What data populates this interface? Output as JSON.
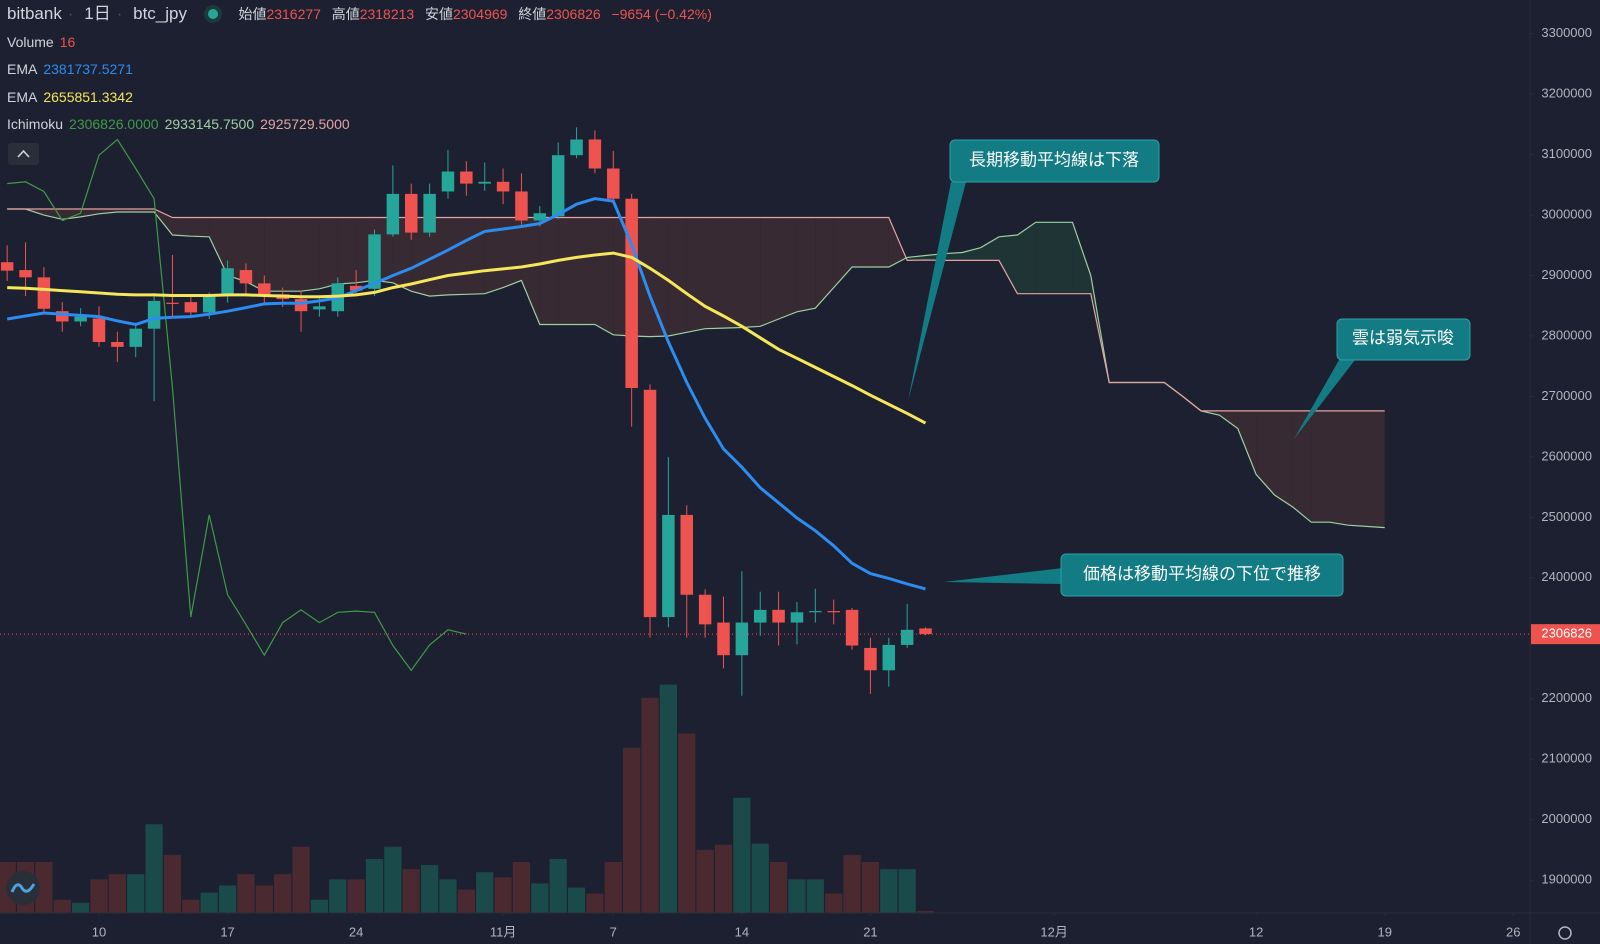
{
  "header": {
    "exchange": "bitbank",
    "interval": "1日",
    "symbol": "btc_jpy",
    "ohlc_labels": [
      "始値",
      "高値",
      "安値",
      "終値"
    ],
    "change": "−9654 (−0.42%)"
  },
  "chart_data": {
    "type": "candlestick",
    "up_color": "#26a69a",
    "down_color": "#ef5350",
    "x": [
      0,
      1,
      2,
      3,
      4,
      5,
      6,
      7,
      8,
      9,
      10,
      11,
      12,
      13,
      14,
      15,
      16,
      17,
      18,
      19,
      20,
      21,
      22,
      23,
      24,
      25,
      26,
      27,
      28,
      29,
      30,
      31,
      32,
      33,
      34,
      35,
      36,
      37,
      38,
      39,
      40,
      41,
      42,
      43,
      44,
      45,
      46,
      47,
      48,
      49,
      50
    ],
    "open": [
      2922000,
      2909000,
      2897000,
      2841000,
      2824000,
      2829000,
      2790000,
      2782000,
      2812000,
      2855000,
      2856000,
      2839000,
      2866000,
      2909000,
      2887000,
      2869000,
      2861000,
      2844000,
      2841000,
      2883000,
      2878000,
      2968000,
      3035000,
      2971000,
      3039000,
      3072000,
      3052000,
      3055000,
      3039000,
      2991000,
      2998000,
      3099000,
      3125000,
      3077000,
      3027000,
      2711000,
      2335000,
      2504000,
      2372000,
      2326000,
      2272000,
      2326000,
      2347000,
      2326000,
      2343000,
      2345000,
      2347000,
      2284000,
      2247000,
      2289000,
      2316277
    ],
    "high": [
      2950000,
      2955000,
      2914000,
      2856000,
      2846000,
      2849000,
      2807000,
      2822000,
      2871000,
      2934000,
      2866000,
      2872000,
      2925000,
      2920000,
      2900000,
      2880000,
      2875000,
      2862000,
      2897000,
      2909000,
      2976000,
      3082000,
      3052000,
      3052000,
      3108000,
      3089000,
      3087000,
      3077000,
      3069000,
      3015000,
      3120000,
      3145000,
      3140000,
      3106000,
      3035000,
      2720000,
      2600000,
      2520000,
      2381000,
      2369000,
      2411000,
      2377000,
      2377000,
      2360000,
      2382000,
      2364000,
      2350000,
      2301000,
      2301000,
      2357000,
      2318213
    ],
    "low": [
      2891000,
      2866000,
      2836000,
      2807000,
      2816000,
      2782000,
      2757000,
      2765000,
      2692000,
      2832000,
      2830000,
      2828000,
      2855000,
      2866000,
      2853000,
      2848000,
      2807000,
      2832000,
      2832000,
      2866000,
      2866000,
      2964000,
      2959000,
      2964000,
      3027000,
      3032000,
      3040000,
      3018000,
      2984000,
      2981000,
      2993000,
      3094000,
      3069000,
      3018000,
      2650000,
      2301000,
      2318000,
      2301000,
      2301000,
      2250000,
      2205000,
      2304000,
      2288000,
      2290000,
      2326000,
      2323000,
      2281000,
      2208000,
      2220000,
      2284000,
      2304969
    ],
    "close": [
      2908000,
      2897000,
      2845000,
      2824000,
      2832000,
      2790000,
      2782000,
      2812000,
      2858000,
      2853000,
      2839000,
      2865000,
      2912000,
      2887000,
      2866000,
      2861000,
      2841000,
      2849000,
      2887000,
      2875000,
      2968000,
      3035000,
      2971000,
      3035000,
      3072000,
      3052000,
      3055000,
      3039000,
      2991000,
      3003000,
      3099000,
      3125000,
      3077000,
      3027000,
      2714000,
      2335000,
      2504000,
      2372000,
      2323000,
      2272000,
      2326000,
      2347000,
      2326000,
      2343000,
      2345000,
      2343000,
      2288000,
      2247000,
      2289000,
      2314000,
      2306826
    ],
    "volume": {
      "name": "Volume",
      "ylim": [
        0,
        7160
      ],
      "up_color": "#1a4a4a",
      "down_color": "#4a2a30",
      "values": [
        400,
        400,
        400,
        104,
        80,
        264,
        304,
        304,
        696,
        456,
        104,
        160,
        216,
        304,
        216,
        304,
        520,
        104,
        264,
        264,
        424,
        520,
        344,
        376,
        264,
        184,
        320,
        280,
        400,
        232,
        424,
        200,
        152,
        400,
        1296,
        1688,
        1792,
        1408,
        496,
        536,
        904,
        544,
        400,
        264,
        264,
        152,
        456,
        400,
        344,
        344,
        16
      ]
    },
    "ema": [
      {
        "name": "EMA",
        "color": "#2d8cf0",
        "values": [
          2828000,
          2833000,
          2838000,
          2836000,
          2834000,
          2832000,
          2825000,
          2819000,
          2829000,
          2831000,
          2832000,
          2836000,
          2841000,
          2847000,
          2853000,
          2854000,
          2854000,
          2858000,
          2863000,
          2875000,
          2887000,
          2900000,
          2912000,
          2927000,
          2942000,
          2958000,
          2973000,
          2977000,
          2981000,
          2986000,
          3001000,
          3018000,
          3027000,
          3023000,
          2951000,
          2866000,
          2790000,
          2723000,
          2664000,
          2613000,
          2583000,
          2549000,
          2524000,
          2499000,
          2478000,
          2453000,
          2424000,
          2407000,
          2399000,
          2390000,
          2381737.5271
        ]
      },
      {
        "name": "EMA",
        "color": "#f5e65a",
        "values": [
          2880000,
          2879000,
          2877000,
          2875000,
          2873000,
          2871000,
          2869000,
          2868000,
          2868000,
          2867000,
          2867000,
          2867000,
          2868000,
          2868000,
          2867000,
          2866000,
          2865000,
          2865000,
          2866000,
          2868000,
          2872000,
          2880000,
          2886000,
          2893000,
          2900000,
          2904000,
          2908000,
          2911000,
          2914000,
          2919000,
          2925000,
          2930000,
          2934000,
          2937000,
          2930000,
          2912000,
          2892000,
          2870000,
          2849000,
          2833000,
          2816000,
          2797000,
          2778000,
          2763000,
          2748000,
          2733000,
          2718000,
          2702000,
          2687000,
          2672000,
          2655851.3342
        ]
      }
    ],
    "ichimoku": {
      "name": "Ichimoku",
      "value_labels": [
        "2306826.0000",
        "2933145.7500",
        "2925729.5000"
      ],
      "cloud_up_color": "#1e3435",
      "cloud_down_color": "#372a33",
      "lagging": {
        "color": "#3f9a47",
        "x": [
          0,
          1,
          2,
          3,
          4,
          5,
          6,
          7,
          8,
          9,
          10,
          11,
          12,
          13,
          14,
          15,
          16,
          17,
          18,
          19,
          20,
          21,
          22,
          23,
          24,
          25
        ],
        "values": [
          3052000,
          3055000,
          3039000,
          2991000,
          3003000,
          3099000,
          3125000,
          3077000,
          3027000,
          2714000,
          2335000,
          2504000,
          2372000,
          2323000,
          2272000,
          2326000,
          2347000,
          2326000,
          2343000,
          2345000,
          2343000,
          2288000,
          2247000,
          2289000,
          2314000,
          2306826
        ]
      },
      "span_x": [
        0,
        1,
        2,
        3,
        4,
        5,
        6,
        7,
        8,
        9,
        10,
        11,
        12,
        13,
        14,
        15,
        16,
        17,
        18,
        19,
        20,
        21,
        22,
        23,
        24,
        25,
        26,
        27,
        28,
        29,
        30,
        31,
        32,
        33,
        34,
        35,
        36,
        37,
        38,
        39,
        40,
        41,
        42,
        43,
        44,
        45,
        46,
        47,
        48,
        49,
        50,
        51,
        52,
        53,
        54,
        55,
        56,
        57,
        58,
        59,
        60,
        61,
        62,
        63,
        64,
        65,
        66,
        67,
        68,
        69,
        70,
        71,
        72,
        73,
        74,
        75
      ],
      "span_a": {
        "color": "#9fcfa2",
        "values": [
          3010000,
          3010000,
          3000000,
          2993000,
          2997000,
          3002000,
          3005000,
          3005000,
          3005000,
          2967000,
          2965000,
          2964000,
          2900000,
          2890000,
          2874000,
          2874000,
          2874000,
          2878000,
          2886000,
          2888000,
          2892000,
          2888000,
          2874000,
          2866000,
          2868000,
          2869000,
          2870000,
          2880000,
          2892000,
          2819000,
          2819000,
          2819000,
          2819000,
          2802000,
          2800000,
          2799000,
          2800000,
          2806000,
          2812000,
          2813000,
          2814000,
          2816000,
          2828000,
          2840000,
          2846000,
          2880000,
          2914000,
          2914000,
          2914000,
          2930000,
          2933145.75,
          2936000,
          2938000,
          2946000,
          2964000,
          2967000,
          2988000,
          2988000,
          2988000,
          2900000,
          2723000,
          2723000,
          2723000,
          2723000,
          2700000,
          2676000,
          2669000,
          2647000,
          2571000,
          2537000,
          2517000,
          2492000,
          2492000,
          2487000,
          2485000,
          2483000
        ]
      },
      "span_b": {
        "color": "#e3a3a3",
        "values": [
          3010000,
          3010000,
          3010000,
          3010000,
          3010000,
          3010000,
          3010000,
          3010000,
          3010000,
          2996000,
          2996000,
          2996000,
          2996000,
          2996000,
          2996000,
          2996000,
          2996000,
          2996000,
          2996000,
          2996000,
          2996000,
          2996000,
          2996000,
          2996000,
          2996000,
          2996000,
          2996000,
          2996000,
          2996000,
          2996000,
          2996000,
          2996000,
          2996000,
          2996000,
          2996000,
          2996000,
          2996000,
          2996000,
          2996000,
          2996000,
          2996000,
          2996000,
          2996000,
          2996000,
          2996000,
          2996000,
          2996000,
          2996000,
          2996000,
          2925000,
          2925729.5,
          2925000,
          2925000,
          2925000,
          2925000,
          2870000,
          2870000,
          2870000,
          2870000,
          2870000,
          2723000,
          2723000,
          2723000,
          2723000,
          2700000,
          2676000,
          2676000,
          2676000,
          2676000,
          2676000,
          2676000,
          2676000,
          2676000,
          2676000,
          2676000,
          2676000
        ]
      }
    },
    "ylim": [
      1845600,
      3355700
    ],
    "yticks": [
      3300000,
      3200000,
      3100000,
      3000000,
      2900000,
      2800000,
      2700000,
      2600000,
      2500000,
      2400000,
      2200000,
      2100000,
      2000000,
      1900000
    ],
    "xlim": [
      -0.39,
      82.91
    ],
    "xticks": [
      {
        "value": 5,
        "label": "10"
      },
      {
        "value": 12,
        "label": "17"
      },
      {
        "value": 19,
        "label": "24"
      },
      {
        "value": 27,
        "label": "11月"
      },
      {
        "value": 33,
        "label": "7"
      },
      {
        "value": 40,
        "label": "14"
      },
      {
        "value": 47,
        "label": "21"
      },
      {
        "value": 57,
        "label": "12月"
      },
      {
        "value": 68,
        "label": "12"
      },
      {
        "value": 75,
        "label": "19"
      },
      {
        "value": 82,
        "label": "26"
      }
    ],
    "annotations": [
      "長期移動平均線は下落",
      "雲は弱気示唆",
      "価格は移動平均線の下位で推移"
    ]
  }
}
